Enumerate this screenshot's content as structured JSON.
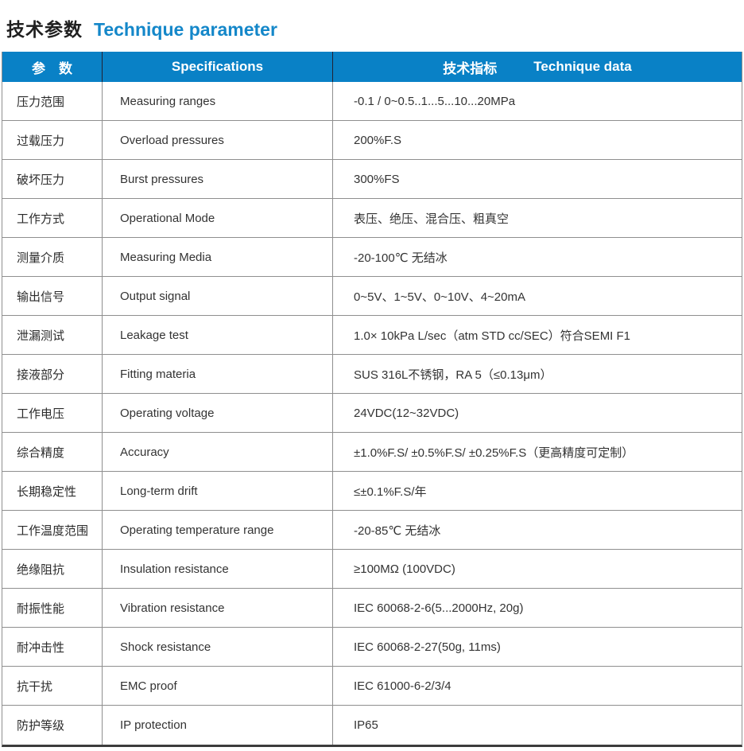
{
  "page_title": {
    "cn": "技术参数",
    "en": "Technique parameter"
  },
  "colors": {
    "header_bg": "#0981c6",
    "title_en_accent": "#1487c9",
    "cell_border": "#8f8f8f",
    "bottom_border": "#3c3c3c"
  },
  "table": {
    "header": {
      "col1": "参　数",
      "col2": "Specifications",
      "col3_cn": "技术指标",
      "col3_en": "Technique data"
    },
    "rows": [
      {
        "param": "压力范围",
        "spec": "Measuring ranges",
        "value": "-0.1 / 0~0.5..1...5...10...20MPa"
      },
      {
        "param": "过载压力",
        "spec": "Overload pressures",
        "value": "200%F.S"
      },
      {
        "param": "破坏压力",
        "spec": "Burst pressures",
        "value": "300%FS"
      },
      {
        "param": "工作方式",
        "spec": "Operational Mode",
        "value": "表压、绝压、混合压、粗真空"
      },
      {
        "param": "测量介质",
        "spec": "Measuring Media",
        "value": "-20-100℃ 无结冰"
      },
      {
        "param": "输出信号",
        "spec": "Output signal",
        "value": "0~5V、1~5V、0~10V、4~20mA"
      },
      {
        "param": "泄漏测试",
        "spec": "Leakage test",
        "value": "1.0× 10kPa L/sec（atm STD cc/SEC）符合SEMI F1"
      },
      {
        "param": "接液部分",
        "spec": "Fitting materia",
        "value": "SUS 316L不锈钢，RA 5（≤0.13μm）"
      },
      {
        "param": "工作电压",
        "spec": "Operating voltage",
        "value": "24VDC(12~32VDC)"
      },
      {
        "param": "综合精度",
        "spec": "Accuracy",
        "value": "±1.0%F.S/ ±0.5%F.S/ ±0.25%F.S（更高精度可定制）"
      },
      {
        "param": "长期稳定性",
        "spec": "Long-term drift",
        "value": "≤±0.1%F.S/年"
      },
      {
        "param": "工作温度范围",
        "spec": "Operating temperature range",
        "value": "-20-85℃ 无结冰"
      },
      {
        "param": "绝缘阻抗",
        "spec": "Insulation resistance",
        "value": "≥100MΩ (100VDC)"
      },
      {
        "param": "耐振性能",
        "spec": "Vibration resistance",
        "value": "IEC 60068-2-6(5...2000Hz, 20g)"
      },
      {
        "param": "耐冲击性",
        "spec": "Shock resistance",
        "value": "IEC 60068-2-27(50g, 11ms)"
      },
      {
        "param": "抗干扰",
        "spec": "EMC proof",
        "value": "IEC 61000-6-2/3/4"
      },
      {
        "param": "防护等级",
        "spec": "IP protection",
        "value": "IP65"
      }
    ]
  }
}
